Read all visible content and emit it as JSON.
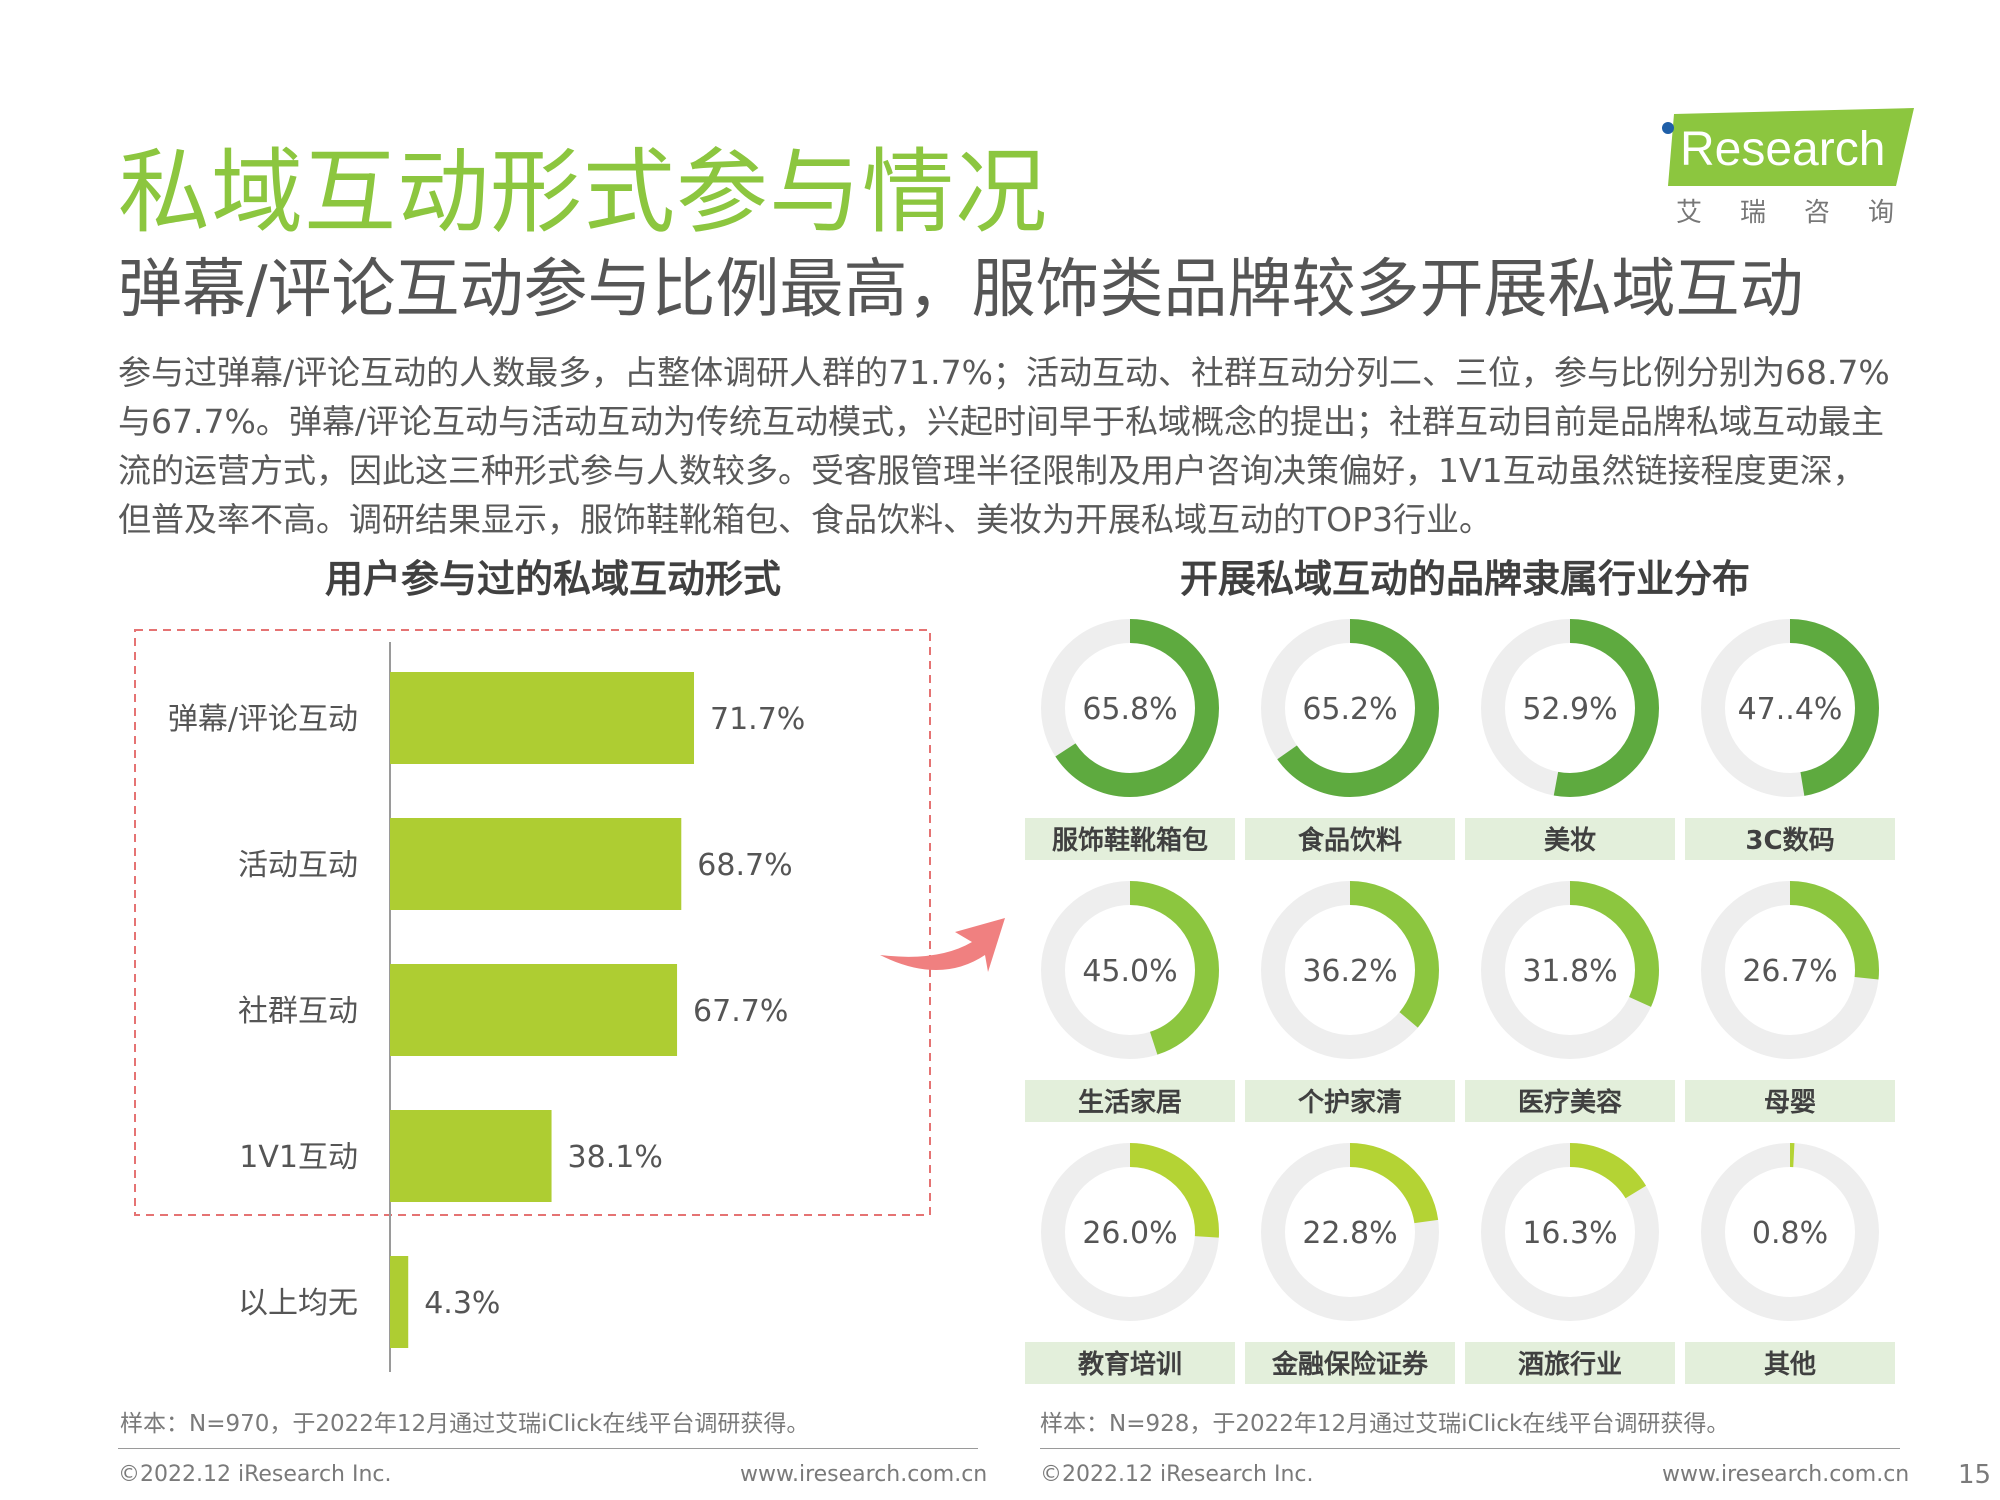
{
  "header": {
    "title": "私域互动形式参与情况",
    "subtitle": "弹幕/评论互动参与比例最高，服饰类品牌较多开展私域互动",
    "logo_text": "Research",
    "logo_cn": "艾瑞咨询"
  },
  "body_text": "参与过弹幕/评论互动的人数最多，占整体调研人群的71.7%；活动互动、社群互动分列二、三位，参与比例分别为68.7%与67.7%。弹幕/评论互动与活动互动为传统互动模式，兴起时间早于私域概念的提出；社群互动目前是品牌私域互动最主流的运营方式，因此这三种形式参与人数较多。受客服管理半径限制及用户咨询决策偏好，1V1互动虽然链接程度更深，但普及率不高。调研结果显示，服饰鞋靴箱包、食品饮料、美妆为开展私域互动的TOP3行业。",
  "left_section_title": "用户参与过的私域互动形式",
  "right_section_title": "开展私域互动的品牌隶属行业分布",
  "left_note": "样本：N=970，于2022年12月通过艾瑞iClick在线平台调研获得。",
  "right_note": "样本：N=928，于2022年12月通过艾瑞iClick在线平台调研获得。",
  "footer": {
    "copyright_left": "©2022.12 iResearch Inc.",
    "url_left": "www.iresearch.com.cn",
    "copyright_right": "©2022.12 iResearch Inc.",
    "url_right": "www.iresearch.com.cn",
    "page_number": "15"
  },
  "colors": {
    "title_green": "#8cc63f",
    "bar_green": "#aecd32",
    "donut_dark": "#5eaa3f",
    "donut_mid": "#8cc63f",
    "donut_light": "#b4d334",
    "donut_track": "#eeeeee",
    "label_bg": "#e3efdb",
    "dash_red": "#e57373",
    "arrow_pink": "#f08080"
  },
  "chart_data": [
    {
      "type": "bar",
      "orientation": "horizontal",
      "title": "用户参与过的私域互动形式",
      "categories": [
        "弹幕/评论互动",
        "活动互动",
        "社群互动",
        "1V1互动",
        "以上均无"
      ],
      "values": [
        71.7,
        68.7,
        67.7,
        38.1,
        4.3
      ],
      "value_labels": [
        "71.7%",
        "68.7%",
        "67.7%",
        "38.1%",
        "4.3%"
      ],
      "xlim": [
        0,
        100
      ],
      "highlighted_categories": [
        "弹幕/评论互动",
        "活动互动",
        "社群互动",
        "1V1互动"
      ]
    },
    {
      "type": "pie",
      "variant": "donut-grid",
      "title": "开展私域互动的品牌隶属行业分布",
      "categories": [
        "服饰鞋靴箱包",
        "食品饮料",
        "美妆",
        "3C数码",
        "生活家居",
        "个护家清",
        "医疗美容",
        "母婴",
        "教育培训",
        "金融保险证券",
        "酒旅行业",
        "其他"
      ],
      "values": [
        65.8,
        65.2,
        52.9,
        47.4,
        45.0,
        36.2,
        31.8,
        26.7,
        26.0,
        22.8,
        16.3,
        0.8
      ],
      "value_labels": [
        "65.8%",
        "65.2%",
        "52.9%",
        "47..4%",
        "45.0%",
        "36.2%",
        "31.8%",
        "26.7%",
        "26.0%",
        "22.8%",
        "16.3%",
        "0.8%"
      ],
      "color_by_row": [
        "dark",
        "mid",
        "light"
      ]
    }
  ]
}
